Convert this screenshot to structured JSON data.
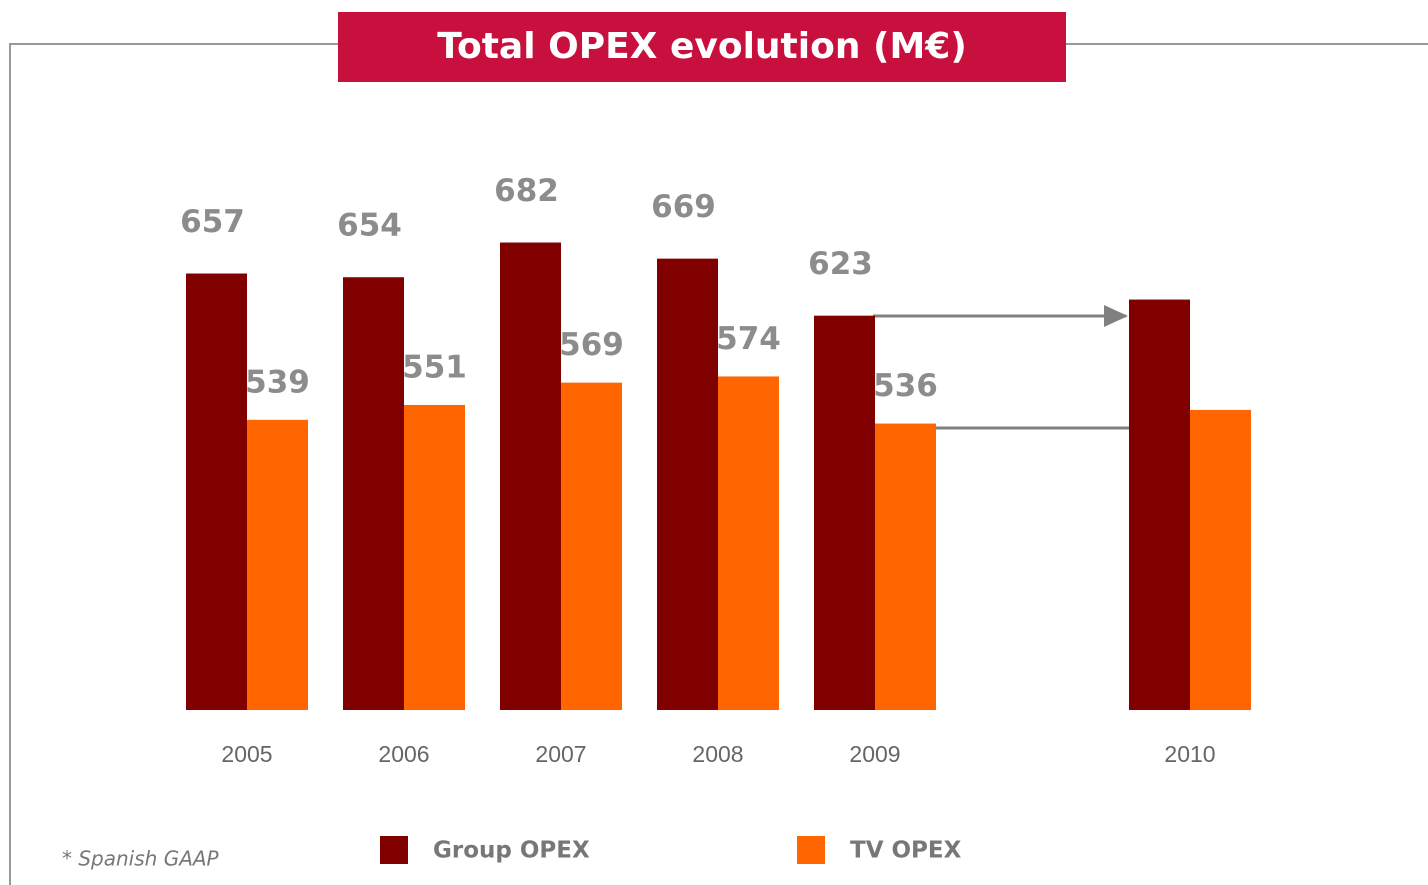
{
  "chart_data": {
    "type": "bar",
    "title": "Total OPEX evolution (M€)",
    "categories": [
      "2005",
      "2006",
      "2007",
      "2008",
      "2009",
      "2010"
    ],
    "series": [
      {
        "name": "Group OPEX",
        "color": "#800000",
        "values": [
          657,
          654,
          682,
          669,
          623,
          636
        ],
        "value_labels": [
          "657",
          "654",
          "682",
          "669",
          "623",
          null
        ]
      },
      {
        "name": "TV OPEX",
        "color": "#ff6600",
        "values": [
          539,
          551,
          569,
          574,
          536,
          547
        ],
        "value_labels": [
          "539",
          "551",
          "569",
          "574",
          "536",
          null
        ]
      }
    ],
    "ylim": [
      305,
      705
    ],
    "footnote": "* Spanish GAAP"
  }
}
